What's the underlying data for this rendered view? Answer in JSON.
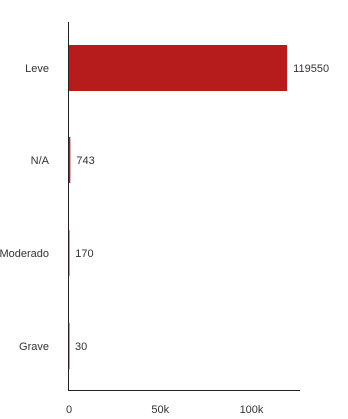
{
  "chart_data": {
    "type": "bar",
    "orientation": "horizontal",
    "categories": [
      "Leve",
      "N/A",
      "Moderado",
      "Grave"
    ],
    "values": [
      119550,
      743,
      170,
      30
    ],
    "value_labels": [
      "119550",
      "743",
      "170",
      "30"
    ],
    "x_ticks": [
      0,
      50000,
      100000
    ],
    "x_tick_labels": [
      "0",
      "50k",
      "100k"
    ],
    "xlim": [
      0,
      140000
    ],
    "bar_color": "#b71c1c",
    "grid": false,
    "legend": "none"
  }
}
